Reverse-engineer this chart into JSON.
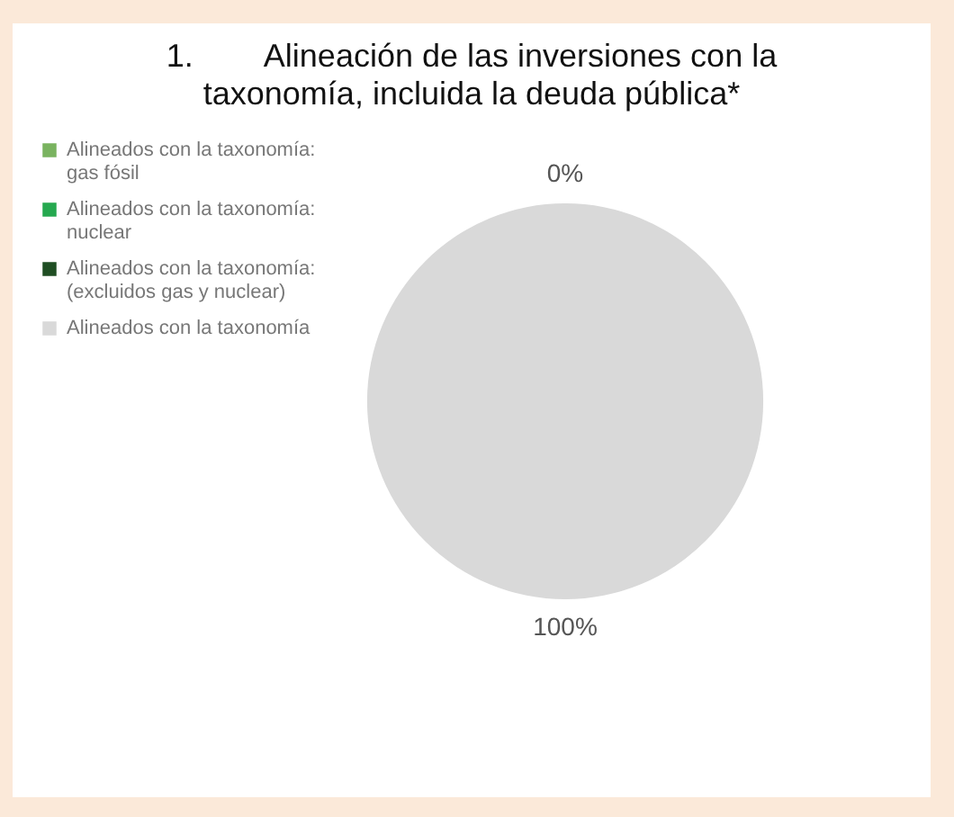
{
  "chart_data": {
    "type": "pie",
    "title": "1.        Alineación de las inversiones con la taxonomía, incluida la deuda pública*",
    "categories": [
      "Alineados con la taxonomía: gas fósil",
      "Alineados con la taxonomía: nuclear",
      "Alineados con la taxonomía: (excluidos gas y nuclear)",
      "Alineados con la taxonomía"
    ],
    "values": [
      0,
      0,
      0,
      100
    ],
    "colors": [
      "#79b35f",
      "#25a84f",
      "#1f4e23",
      "#d9d9d9"
    ],
    "value_labels": [
      "0%",
      null,
      null,
      "100%"
    ],
    "legend": "left"
  }
}
